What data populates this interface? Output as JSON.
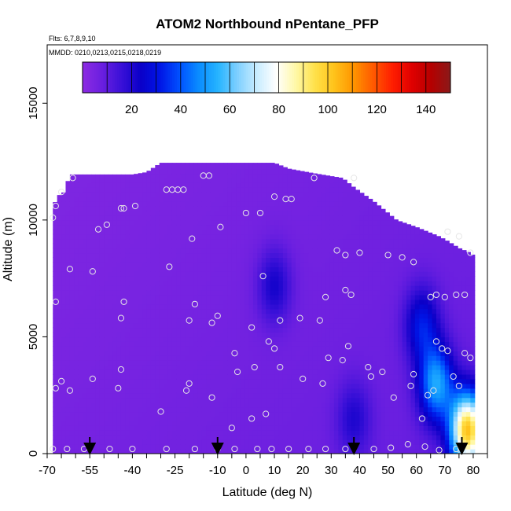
{
  "chart_data": {
    "type": "heatmap",
    "title": "ATOM2 Northbound nPentane_PFP",
    "subtitle_flights": "Flts: 6,7,8,9,10",
    "subtitle_dates": "MMDD: 0210,0213,0215,0218,0219",
    "xlabel": "Latitude (deg N)",
    "ylabel": "Altitude (m)",
    "xlim": [
      -70,
      85
    ],
    "ylim": [
      0,
      17500
    ],
    "x_ticks": [
      "-70",
      "-55",
      "-40",
      "-25",
      "-10",
      "0",
      "10",
      "20",
      "30",
      "40",
      "50",
      "60",
      "70",
      "80"
    ],
    "x_tick_values": [
      -70,
      -55,
      -40,
      -25,
      -10,
      0,
      10,
      20,
      30,
      40,
      50,
      60,
      70,
      80
    ],
    "x_minor_ticks": [
      -65,
      -60,
      -50,
      -45,
      -35,
      -30,
      -20,
      -15,
      -5,
      5,
      15,
      25,
      35,
      45,
      55,
      65,
      75,
      85
    ],
    "y_ticks": [
      "0",
      "5000",
      "10000",
      "15000"
    ],
    "y_tick_values": [
      0,
      5000,
      10000,
      15000
    ],
    "colorbar": {
      "range": [
        0,
        150
      ],
      "ticks": [
        "20",
        "40",
        "60",
        "80",
        "100",
        "120",
        "140"
      ],
      "tick_values": [
        20,
        40,
        60,
        80,
        100,
        120,
        140
      ],
      "colors": [
        "#8d2be2",
        "#6a1fe0",
        "#3a10d8",
        "#0a00c8",
        "#0015e6",
        "#0050ff",
        "#0a8cff",
        "#26b4ff",
        "#7fd0ff",
        "#c8ecff",
        "#ffffff",
        "#fff8a8",
        "#ffe14a",
        "#ffc21a",
        "#ff9400",
        "#ff5a00",
        "#ff1e00",
        "#e00000",
        "#b50000",
        "#8b1a1a"
      ]
    },
    "ceiling_profile": [
      [
        -68,
        10600
      ],
      [
        -66,
        11050
      ],
      [
        -64,
        11200
      ],
      [
        -62,
        11950
      ],
      [
        -46,
        11950
      ],
      [
        -40,
        11950
      ],
      [
        -35,
        12050
      ],
      [
        -30,
        12450
      ],
      [
        -25,
        12450
      ],
      [
        10,
        12450
      ],
      [
        15,
        12200
      ],
      [
        24,
        12000
      ],
      [
        34,
        11800
      ],
      [
        38,
        11400
      ],
      [
        45,
        10800
      ],
      [
        53,
        10000
      ],
      [
        60,
        9700
      ],
      [
        68,
        9300
      ],
      [
        71,
        9100
      ],
      [
        75,
        8800
      ],
      [
        78,
        8650
      ],
      [
        80,
        8500
      ]
    ],
    "field_features": [
      {
        "lat": -60,
        "alt": 5000,
        "value": 6
      },
      {
        "lat": 10,
        "alt": 7200,
        "value": 22
      },
      {
        "lat": 38,
        "alt": 1500,
        "value": 19
      },
      {
        "lat": 62,
        "alt": 5500,
        "value": 30
      },
      {
        "lat": 67,
        "alt": 3000,
        "value": 50
      },
      {
        "lat": 78,
        "alt": 1000,
        "value": 100
      }
    ],
    "sample_points": [
      [
        -68,
        200
      ],
      [
        -63,
        200
      ],
      [
        -57,
        200
      ],
      [
        -48,
        200
      ],
      [
        -40,
        200
      ],
      [
        -28,
        200
      ],
      [
        -18,
        200
      ],
      [
        -10,
        200
      ],
      [
        -4,
        200
      ],
      [
        4,
        200
      ],
      [
        9,
        200
      ],
      [
        15,
        200
      ],
      [
        22,
        200
      ],
      [
        28,
        200
      ],
      [
        35,
        200
      ],
      [
        45,
        200
      ],
      [
        51,
        250
      ],
      [
        57,
        400
      ],
      [
        63,
        300
      ],
      [
        68,
        150
      ],
      [
        74,
        200
      ],
      [
        -67,
        2800
      ],
      [
        -65,
        3100
      ],
      [
        -62,
        2700
      ],
      [
        -54,
        3200
      ],
      [
        -45,
        2800
      ],
      [
        -44,
        3600
      ],
      [
        -30,
        1800
      ],
      [
        -21,
        2700
      ],
      [
        -20,
        3000
      ],
      [
        -12,
        2400
      ],
      [
        -5,
        1100
      ],
      [
        -4,
        4300
      ],
      [
        -3,
        3500
      ],
      [
        2,
        1500
      ],
      [
        3,
        3700
      ],
      [
        7,
        1700
      ],
      [
        12,
        3700
      ],
      [
        20,
        3200
      ],
      [
        27,
        3000
      ],
      [
        29,
        4100
      ],
      [
        34,
        4000
      ],
      [
        36,
        4600
      ],
      [
        43,
        3700
      ],
      [
        44,
        3300
      ],
      [
        48,
        3500
      ],
      [
        52,
        2400
      ],
      [
        58,
        2900
      ],
      [
        59,
        3400
      ],
      [
        -67,
        6500
      ],
      [
        -62,
        7900
      ],
      [
        -54,
        7800
      ],
      [
        -44,
        5800
      ],
      [
        -43,
        6500
      ],
      [
        -27,
        8000
      ],
      [
        -20,
        5700
      ],
      [
        -18,
        6400
      ],
      [
        -12,
        5600
      ],
      [
        -10,
        5900
      ],
      [
        2,
        5400
      ],
      [
        6,
        7600
      ],
      [
        8,
        4800
      ],
      [
        10,
        4500
      ],
      [
        12,
        5700
      ],
      [
        19,
        5800
      ],
      [
        26,
        5700
      ],
      [
        28,
        6700
      ],
      [
        35,
        7000
      ],
      [
        37,
        6800
      ],
      [
        -68,
        10100
      ],
      [
        -67,
        10600
      ],
      [
        -65,
        11200
      ],
      [
        -61,
        11800
      ],
      [
        -52,
        9600
      ],
      [
        -49,
        9800
      ],
      [
        -44,
        10500
      ],
      [
        -43,
        10500
      ],
      [
        -39,
        10600
      ],
      [
        -28,
        11300
      ],
      [
        -26,
        11300
      ],
      [
        -24,
        11300
      ],
      [
        -22,
        11300
      ],
      [
        -19,
        9200
      ],
      [
        -15,
        11900
      ],
      [
        -13,
        11900
      ],
      [
        -9,
        9700
      ],
      [
        0,
        10300
      ],
      [
        5,
        10300
      ],
      [
        10,
        11000
      ],
      [
        14,
        10900
      ],
      [
        16,
        10900
      ],
      [
        24,
        11800
      ],
      [
        32,
        8700
      ],
      [
        35,
        8500
      ],
      [
        38,
        11800
      ],
      [
        40,
        8600
      ],
      [
        50,
        8500
      ],
      [
        55,
        8400
      ],
      [
        59,
        8200
      ],
      [
        71,
        9500
      ],
      [
        75,
        9300
      ],
      [
        79,
        8600
      ],
      [
        62,
        1500
      ],
      [
        64,
        2500
      ],
      [
        66,
        2700
      ],
      [
        67,
        4800
      ],
      [
        69,
        4500
      ],
      [
        71,
        4400
      ],
      [
        73,
        3300
      ],
      [
        75,
        2900
      ],
      [
        77,
        4300
      ],
      [
        79,
        4100
      ],
      [
        65,
        6700
      ],
      [
        67,
        6800
      ],
      [
        70,
        6700
      ],
      [
        74,
        6800
      ],
      [
        77,
        6800
      ]
    ],
    "arrow_latitudes": [
      -55,
      -10,
      38,
      76
    ],
    "grid": false
  }
}
